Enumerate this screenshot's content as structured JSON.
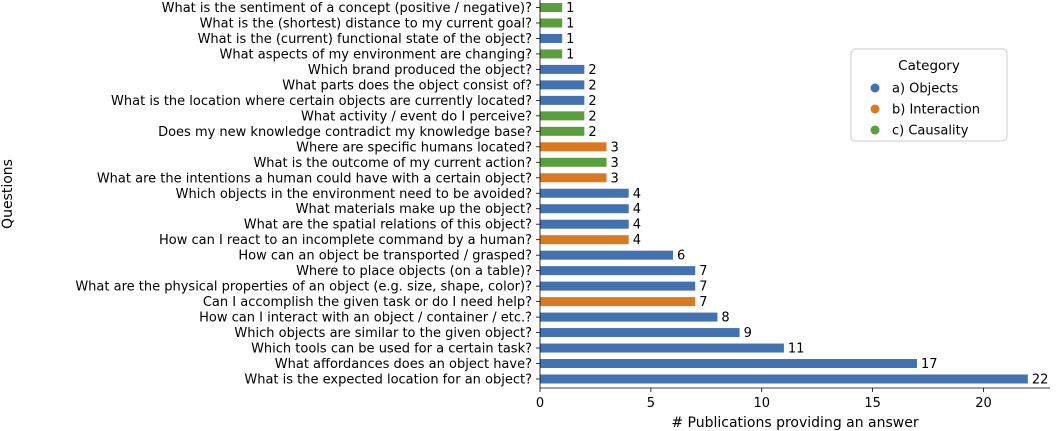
{
  "chart_data": {
    "type": "bar",
    "orientation": "horizontal",
    "xlabel": "# Publications providing an answer",
    "ylabel": "Questions",
    "xlim": [
      0,
      23
    ],
    "xticks": [
      0,
      5,
      10,
      15,
      20
    ],
    "grid": false,
    "legend": {
      "title": "Category",
      "placement": "right",
      "entries": [
        {
          "label": "a) Objects",
          "color": "#4472b0"
        },
        {
          "label": "b) Interaction",
          "color": "#d97a22"
        },
        {
          "label": "c) Causality",
          "color": "#5a9e3e"
        }
      ]
    },
    "bars": [
      {
        "question": "What is the sentiment of a concept (positive / negative)?",
        "value": 1,
        "category": "c) Causality"
      },
      {
        "question": "What is the (shortest) distance to my current goal?",
        "value": 1,
        "category": "c) Causality"
      },
      {
        "question": "What is the (current) functional state of the object?",
        "value": 1,
        "category": "a) Objects"
      },
      {
        "question": "What aspects of my environment are changing?",
        "value": 1,
        "category": "c) Causality"
      },
      {
        "question": "Which brand produced the object?",
        "value": 2,
        "category": "a) Objects"
      },
      {
        "question": "What parts does the object consist of?",
        "value": 2,
        "category": "a) Objects"
      },
      {
        "question": "What is the location where certain objects are currently located?",
        "value": 2,
        "category": "a) Objects"
      },
      {
        "question": "What activity / event do I perceive?",
        "value": 2,
        "category": "c) Causality"
      },
      {
        "question": "Does my new knowledge contradict my knowledge base?",
        "value": 2,
        "category": "c) Causality"
      },
      {
        "question": "Where are specific humans located?",
        "value": 3,
        "category": "b) Interaction"
      },
      {
        "question": "What is the outcome of my current action?",
        "value": 3,
        "category": "c) Causality"
      },
      {
        "question": "What are the intentions a human could have with a certain object?",
        "value": 3,
        "category": "b) Interaction"
      },
      {
        "question": "Which objects in the environment need to be avoided?",
        "value": 4,
        "category": "a) Objects"
      },
      {
        "question": "What materials make up the object?",
        "value": 4,
        "category": "a) Objects"
      },
      {
        "question": "What are the spatial relations of this object?",
        "value": 4,
        "category": "a) Objects"
      },
      {
        "question": "How can I react to an incomplete command by a human?",
        "value": 4,
        "category": "b) Interaction"
      },
      {
        "question": "How can an object be transported / grasped?",
        "value": 6,
        "category": "a) Objects"
      },
      {
        "question": "Where to place objects (on a table)?",
        "value": 7,
        "category": "a) Objects"
      },
      {
        "question": "What are the physical properties of an object (e.g. size, shape, color)?",
        "value": 7,
        "category": "a) Objects"
      },
      {
        "question": "Can I accomplish the given task or do I need help?",
        "value": 7,
        "category": "b) Interaction"
      },
      {
        "question": "How can I interact with an object / container / etc.?",
        "value": 8,
        "category": "a) Objects"
      },
      {
        "question": "Which objects are similar to the given object?",
        "value": 9,
        "category": "a) Objects"
      },
      {
        "question": "Which tools can be used for a certain task?",
        "value": 11,
        "category": "a) Objects"
      },
      {
        "question": "What affordances does an object have?",
        "value": 17,
        "category": "a) Objects"
      },
      {
        "question": "What is the expected location for an object?",
        "value": 22,
        "category": "a) Objects"
      }
    ]
  }
}
